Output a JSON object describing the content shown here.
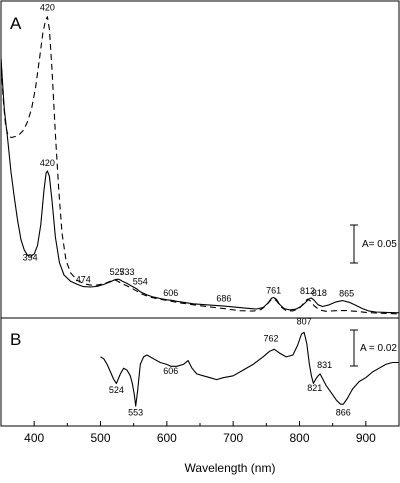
{
  "chart_data": {
    "type": "line",
    "xlabel": "Wavelength (nm)",
    "xlim": [
      350,
      950
    ],
    "x_ticks": [
      400,
      500,
      600,
      700,
      800,
      900
    ],
    "panels": [
      {
        "label": "A",
        "scale_bar_label": "A= 0.05",
        "series": [
          {
            "style": "solid",
            "points": [
              [
                350,
                1.3
              ],
              [
                355,
                1.06
              ],
              [
                360,
                0.92
              ],
              [
                365,
                0.76
              ],
              [
                370,
                0.64
              ],
              [
                375,
                0.53
              ],
              [
                380,
                0.44
              ],
              [
                385,
                0.39
              ],
              [
                390,
                0.364
              ],
              [
                395,
                0.36
              ],
              [
                400,
                0.37
              ],
              [
                405,
                0.41
              ],
              [
                410,
                0.51
              ],
              [
                415,
                0.68
              ],
              [
                418,
                0.755
              ],
              [
                420,
                0.765
              ],
              [
                423,
                0.74
              ],
              [
                427,
                0.62
              ],
              [
                432,
                0.45
              ],
              [
                438,
                0.33
              ],
              [
                445,
                0.27
              ],
              [
                455,
                0.24
              ],
              [
                465,
                0.225
              ],
              [
                474,
                0.215
              ],
              [
                485,
                0.213
              ],
              [
                495,
                0.216
              ],
              [
                505,
                0.225
              ],
              [
                515,
                0.238
              ],
              [
                522,
                0.248
              ],
              [
                527,
                0.25
              ],
              [
                530,
                0.246
              ],
              [
                533,
                0.24
              ],
              [
                540,
                0.23
              ],
              [
                547,
                0.217
              ],
              [
                554,
                0.205
              ],
              [
                560,
                0.19
              ],
              [
                570,
                0.175
              ],
              [
                580,
                0.165
              ],
              [
                590,
                0.158
              ],
              [
                600,
                0.152
              ],
              [
                606,
                0.15
              ],
              [
                615,
                0.145
              ],
              [
                625,
                0.14
              ],
              [
                640,
                0.133
              ],
              [
                660,
                0.128
              ],
              [
                686,
                0.122
              ],
              [
                700,
                0.118
              ],
              [
                720,
                0.112
              ],
              [
                735,
                0.108
              ],
              [
                745,
                0.115
              ],
              [
                752,
                0.135
              ],
              [
                758,
                0.16
              ],
              [
                761,
                0.163
              ],
              [
                765,
                0.155
              ],
              [
                770,
                0.13
              ],
              [
                777,
                0.11
              ],
              [
                785,
                0.104
              ],
              [
                795,
                0.108
              ],
              [
                803,
                0.122
              ],
              [
                810,
                0.142
              ],
              [
                815,
                0.158
              ],
              [
                818,
                0.16
              ],
              [
                822,
                0.15
              ],
              [
                828,
                0.128
              ],
              [
                835,
                0.12
              ],
              [
                845,
                0.128
              ],
              [
                855,
                0.142
              ],
              [
                865,
                0.148
              ],
              [
                875,
                0.14
              ],
              [
                885,
                0.125
              ],
              [
                895,
                0.11
              ],
              [
                905,
                0.098
              ],
              [
                915,
                0.094
              ],
              [
                930,
                0.092
              ],
              [
                950,
                0.09
              ]
            ]
          },
          {
            "style": "dashed",
            "points": [
              [
                350,
                1.3
              ],
              [
                353,
                1.12
              ],
              [
                357,
                0.98
              ],
              [
                361,
                0.93
              ],
              [
                366,
                0.925
              ],
              [
                372,
                0.93
              ],
              [
                378,
                0.94
              ],
              [
                384,
                0.96
              ],
              [
                390,
                1.0
              ],
              [
                396,
                1.06
              ],
              [
                402,
                1.16
              ],
              [
                408,
                1.3
              ],
              [
                413,
                1.42
              ],
              [
                417,
                1.48
              ],
              [
                420,
                1.5
              ],
              [
                423,
                1.44
              ],
              [
                427,
                1.24
              ],
              [
                432,
                0.94
              ],
              [
                437,
                0.68
              ],
              [
                442,
                0.47
              ],
              [
                448,
                0.34
              ],
              [
                455,
                0.28
              ],
              [
                465,
                0.245
              ],
              [
                475,
                0.228
              ],
              [
                485,
                0.222
              ],
              [
                495,
                0.222
              ],
              [
                505,
                0.228
              ],
              [
                515,
                0.24
              ],
              [
                520,
                0.248
              ],
              [
                525,
                0.242
              ],
              [
                533,
                0.228
              ],
              [
                540,
                0.218
              ],
              [
                548,
                0.205
              ],
              [
                554,
                0.195
              ],
              [
                562,
                0.18
              ],
              [
                572,
                0.167
              ],
              [
                585,
                0.157
              ],
              [
                600,
                0.149
              ],
              [
                620,
                0.137
              ],
              [
                640,
                0.128
              ],
              [
                660,
                0.12
              ],
              [
                686,
                0.11
              ],
              [
                710,
                0.1
              ],
              [
                730,
                0.098
              ],
              [
                742,
                0.105
              ],
              [
                750,
                0.125
              ],
              [
                757,
                0.152
              ],
              [
                761,
                0.158
              ],
              [
                766,
                0.145
              ],
              [
                772,
                0.118
              ],
              [
                780,
                0.1
              ],
              [
                790,
                0.099
              ],
              [
                800,
                0.112
              ],
              [
                807,
                0.138
              ],
              [
                812,
                0.155
              ],
              [
                816,
                0.148
              ],
              [
                822,
                0.124
              ],
              [
                830,
                0.104
              ],
              [
                840,
                0.097
              ],
              [
                855,
                0.1
              ],
              [
                870,
                0.101
              ],
              [
                885,
                0.097
              ],
              [
                900,
                0.092
              ],
              [
                915,
                0.089
              ],
              [
                930,
                0.087
              ],
              [
                950,
                0.085
              ]
            ]
          }
        ],
        "peak_labels": [
          {
            "text": "420",
            "x": 420,
            "y": 1.53
          },
          {
            "text": "420",
            "x": 420,
            "y": 0.79
          },
          {
            "text": "394",
            "x": 394,
            "y": 0.34
          },
          {
            "text": "474",
            "x": 474,
            "y": 0.234
          },
          {
            "text": "527",
            "x": 525,
            "y": 0.27
          },
          {
            "text": "533",
            "x": 540,
            "y": 0.27
          },
          {
            "text": "554",
            "x": 560,
            "y": 0.225
          },
          {
            "text": "606",
            "x": 606,
            "y": 0.17
          },
          {
            "text": "686",
            "x": 686,
            "y": 0.145
          },
          {
            "text": "761",
            "x": 761,
            "y": 0.183
          },
          {
            "text": "812",
            "x": 812,
            "y": 0.18
          },
          {
            "text": "818",
            "x": 830,
            "y": 0.17
          },
          {
            "text": "865",
            "x": 871,
            "y": 0.167
          }
        ]
      },
      {
        "label": "B",
        "scale_bar_label": "A = 0.02",
        "series": [
          {
            "style": "solid",
            "points": [
              [
                500,
                0.02
              ],
              [
                505,
                0.019
              ],
              [
                510,
                0.016
              ],
              [
                515,
                0.012
              ],
              [
                520,
                0.008
              ],
              [
                524,
                0.006
              ],
              [
                530,
                0.011
              ],
              [
                535,
                0.014
              ],
              [
                540,
                0.013
              ],
              [
                545,
                0.01
              ],
              [
                548,
                0.006
              ],
              [
                551,
                0.0
              ],
              [
                553,
                -0.006
              ],
              [
                556,
                0.002
              ],
              [
                560,
                0.016
              ],
              [
                565,
                0.02
              ],
              [
                570,
                0.021
              ],
              [
                580,
                0.019
              ],
              [
                590,
                0.017
              ],
              [
                600,
                0.016
              ],
              [
                606,
                0.015
              ],
              [
                615,
                0.015
              ],
              [
                625,
                0.016
              ],
              [
                632,
                0.018
              ],
              [
                638,
                0.014
              ],
              [
                645,
                0.011
              ],
              [
                655,
                0.01
              ],
              [
                665,
                0.009
              ],
              [
                675,
                0.008
              ],
              [
                685,
                0.009
              ],
              [
                700,
                0.01
              ],
              [
                715,
                0.013
              ],
              [
                730,
                0.016
              ],
              [
                745,
                0.02
              ],
              [
                755,
                0.023
              ],
              [
                762,
                0.024
              ],
              [
                770,
                0.022
              ],
              [
                780,
                0.02
              ],
              [
                790,
                0.021
              ],
              [
                797,
                0.026
              ],
              [
                803,
                0.032
              ],
              [
                807,
                0.033
              ],
              [
                811,
                0.027
              ],
              [
                815,
                0.016
              ],
              [
                818,
                0.01
              ],
              [
                821,
                0.006
              ],
              [
                824,
                0.008
              ],
              [
                828,
                0.01
              ],
              [
                831,
                0.011
              ],
              [
                834,
                0.009
              ],
              [
                840,
                0.005
              ],
              [
                848,
                0.001
              ],
              [
                856,
                -0.003
              ],
              [
                862,
                -0.005
              ],
              [
                866,
                -0.005
              ],
              [
                872,
                -0.002
              ],
              [
                880,
                0.003
              ],
              [
                890,
                0.007
              ],
              [
                900,
                0.009
              ],
              [
                910,
                0.012
              ],
              [
                920,
                0.014
              ],
              [
                930,
                0.016
              ],
              [
                940,
                0.017
              ],
              [
                950,
                0.017
              ]
            ]
          }
        ],
        "peak_labels": [
          {
            "text": "524",
            "x": 524,
            "y": 0.001
          },
          {
            "text": "553",
            "x": 553,
            "y": -0.011
          },
          {
            "text": "606",
            "x": 606,
            "y": 0.011
          },
          {
            "text": "762",
            "x": 757,
            "y": 0.028
          },
          {
            "text": "807",
            "x": 807,
            "y": 0.037
          },
          {
            "text": "831",
            "x": 838,
            "y": 0.014
          },
          {
            "text": "821",
            "x": 823,
            "y": 0.002
          },
          {
            "text": "866",
            "x": 866,
            "y": -0.011
          }
        ]
      }
    ]
  }
}
